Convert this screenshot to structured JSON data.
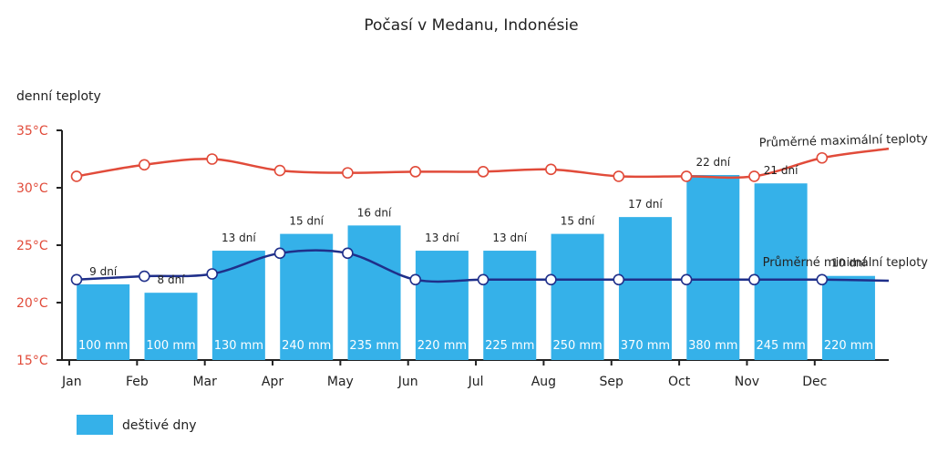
{
  "chart_data": {
    "type": "bar+line",
    "title": "Počasí v Medanu, Indonésie",
    "ylabel": "denní teploty",
    "ylim": [
      15,
      35
    ],
    "yticks": [
      "15°C",
      "20°C",
      "25°C",
      "30°C",
      "35°C"
    ],
    "categories": [
      "Jan",
      "Feb",
      "Mar",
      "Apr",
      "May",
      "Jun",
      "Jul",
      "Aug",
      "Sep",
      "Oct",
      "Nov",
      "Dec"
    ],
    "bars": {
      "name": "deštivé dny",
      "color": "#35b1e9",
      "rain_days": [
        9,
        8,
        13,
        15,
        16,
        13,
        13,
        15,
        17,
        22,
        21,
        10
      ],
      "day_labels": [
        "9 dní",
        "8 dní",
        "13 dní",
        "15 dní",
        "16 dní",
        "13 dní",
        "13 dní",
        "15 dní",
        "17 dní",
        "22 dní",
        "21 dní",
        "10 dní"
      ],
      "rain_labels": [
        "100 mm",
        "100 mm",
        "130 mm",
        "240 mm",
        "235 mm",
        "220 mm",
        "225 mm",
        "250 mm",
        "370 mm",
        "380 mm",
        "245 mm",
        "220 mm"
      ]
    },
    "series": [
      {
        "name": "Průměrné maximální teploty",
        "color": "#e14b3a",
        "values": [
          31.0,
          32.0,
          32.5,
          31.5,
          31.3,
          31.4,
          31.4,
          31.6,
          31.0,
          31.0,
          31.0,
          32.6
        ],
        "end_value": 33.4
      },
      {
        "name": "Průměrné minimální teploty",
        "color": "#1f2f8a",
        "values": [
          22.0,
          22.3,
          22.5,
          24.3,
          24.3,
          22.0,
          22.0,
          22.0,
          22.0,
          22.0,
          22.0,
          22.0
        ],
        "end_value": 21.9
      }
    ],
    "legend": {
      "position": "bottom-left",
      "label": "deštivé dny"
    }
  }
}
